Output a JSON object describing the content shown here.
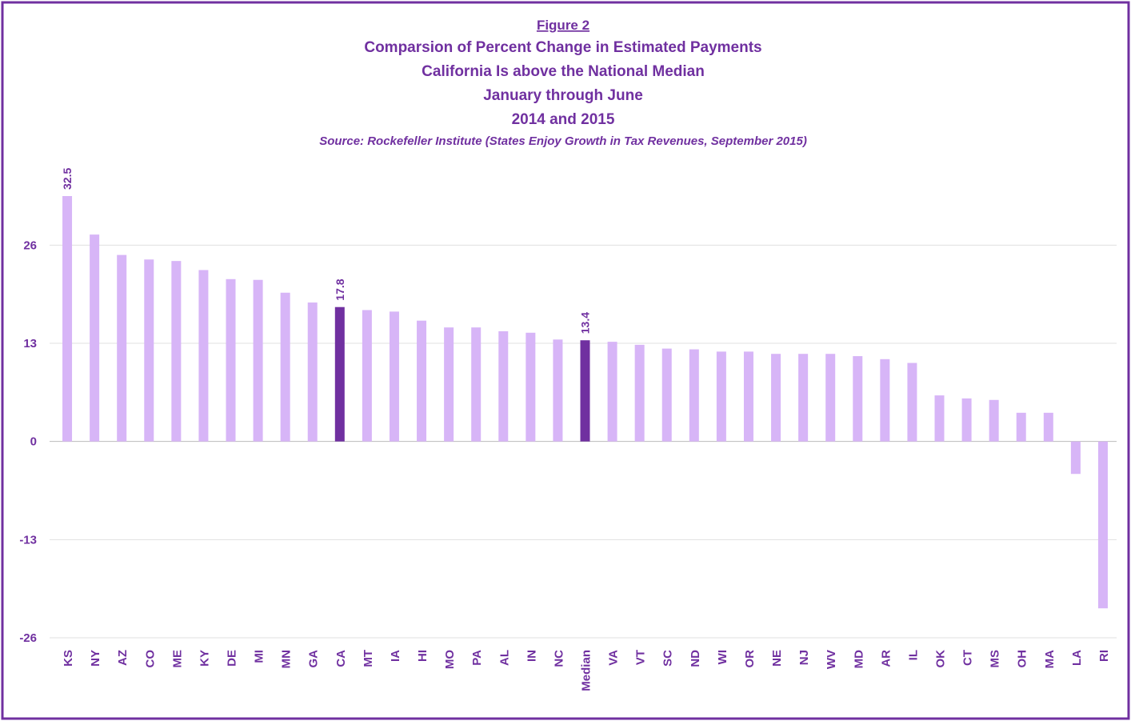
{
  "chart_data": {
    "type": "bar",
    "figure_label": "Figure 2",
    "title_lines": [
      "Comparsion of Percent Change in Estimated Payments",
      "California Is above the National Median",
      "January through June",
      "2014 and 2015"
    ],
    "source": "Source: Rockefeller Institute (States Enjoy Growth in Tax Revenues, September 2015)",
    "categories": [
      "KS",
      "NY",
      "AZ",
      "CO",
      "ME",
      "KY",
      "DE",
      "MI",
      "MN",
      "GA",
      "CA",
      "MT",
      "IA",
      "HI",
      "MO",
      "PA",
      "AL",
      "IN",
      "NC",
      "Median",
      "VA",
      "VT",
      "SC",
      "ND",
      "WI",
      "OR",
      "NE",
      "NJ",
      "WV",
      "MD",
      "AR",
      "IL",
      "OK",
      "CT",
      "MS",
      "OH",
      "MA",
      "LA",
      "RI"
    ],
    "values": [
      32.5,
      27.4,
      24.7,
      24.1,
      23.9,
      22.7,
      21.5,
      21.4,
      19.7,
      18.4,
      17.8,
      17.4,
      17.2,
      16.0,
      15.1,
      15.1,
      14.6,
      14.4,
      13.5,
      13.4,
      13.2,
      12.8,
      12.3,
      12.2,
      11.9,
      11.9,
      11.6,
      11.6,
      11.6,
      11.3,
      10.9,
      10.4,
      6.1,
      5.7,
      5.5,
      3.8,
      3.8,
      -4.3,
      -22.1
    ],
    "value_labels": [
      "32.5",
      null,
      null,
      null,
      null,
      null,
      null,
      null,
      null,
      null,
      "17.8",
      null,
      null,
      null,
      null,
      null,
      null,
      null,
      null,
      "13.4",
      null,
      null,
      null,
      null,
      null,
      null,
      null,
      null,
      null,
      null,
      null,
      null,
      null,
      null,
      null,
      null,
      null,
      null,
      null
    ],
    "colors": [
      "#d7b5f7",
      "#d7b5f7",
      "#d7b5f7",
      "#d7b5f7",
      "#d7b5f7",
      "#d7b5f7",
      "#d7b5f7",
      "#d7b5f7",
      "#d7b5f7",
      "#d7b5f7",
      "#7030a0",
      "#d7b5f7",
      "#d7b5f7",
      "#d7b5f7",
      "#d7b5f7",
      "#d7b5f7",
      "#d7b5f7",
      "#d7b5f7",
      "#d7b5f7",
      "#7030a0",
      "#d7b5f7",
      "#d7b5f7",
      "#d7b5f7",
      "#d7b5f7",
      "#d7b5f7",
      "#d7b5f7",
      "#d7b5f7",
      "#d7b5f7",
      "#d7b5f7",
      "#d7b5f7",
      "#d7b5f7",
      "#d7b5f7",
      "#d7b5f7",
      "#d7b5f7",
      "#d7b5f7",
      "#d7b5f7",
      "#d7b5f7",
      "#d7b5f7",
      "#d7b5f7"
    ],
    "ylim": [
      -26,
      32.5
    ],
    "yticks": [
      -26,
      -13,
      0,
      13,
      26
    ],
    "grid": true
  }
}
